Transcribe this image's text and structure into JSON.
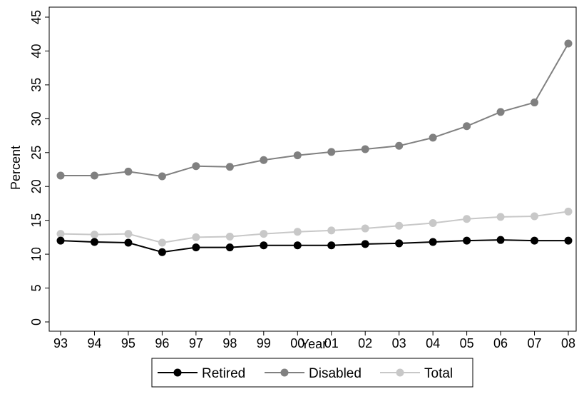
{
  "chart_data": {
    "type": "line",
    "title": "",
    "xlabel": "Year",
    "ylabel": "Percent",
    "categories": [
      "93",
      "94",
      "95",
      "96",
      "97",
      "98",
      "99",
      "00",
      "01",
      "02",
      "03",
      "04",
      "05",
      "06",
      "07",
      "08"
    ],
    "ylim": [
      0,
      45
    ],
    "yticks": [
      0,
      5,
      10,
      15,
      20,
      25,
      30,
      35,
      40,
      45
    ],
    "grid": false,
    "legend_position": "bottom",
    "series": [
      {
        "name": "Retired",
        "color": "#000000",
        "values": [
          12.0,
          11.8,
          11.7,
          10.3,
          11.0,
          11.0,
          11.3,
          11.3,
          11.3,
          11.5,
          11.6,
          11.8,
          12.0,
          12.1,
          12.0,
          12.0
        ]
      },
      {
        "name": "Disabled",
        "color": "#808080",
        "values": [
          21.6,
          21.6,
          22.2,
          21.5,
          23.0,
          22.9,
          23.9,
          24.6,
          25.1,
          25.5,
          26.0,
          27.2,
          28.9,
          31.0,
          32.4,
          41.1
        ]
      },
      {
        "name": "Total",
        "color": "#c8c8c8",
        "values": [
          13.0,
          12.9,
          13.0,
          11.7,
          12.5,
          12.6,
          13.0,
          13.3,
          13.5,
          13.8,
          14.2,
          14.6,
          15.2,
          15.5,
          15.6,
          16.3
        ]
      }
    ]
  }
}
